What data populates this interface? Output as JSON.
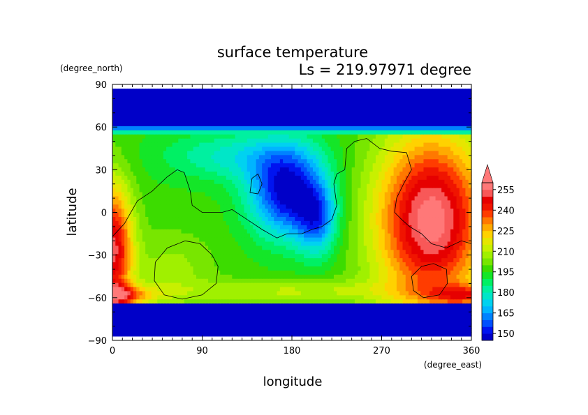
{
  "chart_data": {
    "type": "heatmap",
    "title": "surface temperature",
    "subtitle": "Ls = 219.97971 degree",
    "xlabel": "longitude",
    "ylabel": "latitude",
    "x_unit": "(degree_east)",
    "y_unit": "(degree_north)",
    "xlim": [
      0,
      360
    ],
    "ylim": [
      -90,
      90
    ],
    "x_ticks": [
      0,
      90,
      180,
      270,
      360
    ],
    "y_ticks": [
      90,
      60,
      30,
      0,
      -30,
      -60,
      -90
    ],
    "data_lat_range": [
      -87,
      87
    ],
    "colorbar": {
      "tick_labels": [
        255,
        240,
        225,
        210,
        195,
        180,
        165,
        150
      ],
      "levels": [
        145,
        150,
        155,
        160,
        165,
        170,
        175,
        180,
        185,
        190,
        195,
        200,
        205,
        210,
        215,
        220,
        225,
        230,
        235,
        240,
        245,
        250,
        255,
        260
      ],
      "colors": [
        "#0000c8",
        "#0014f0",
        "#0050ff",
        "#0082ff",
        "#00b4ff",
        "#00d2f0",
        "#00e6c8",
        "#00f0a0",
        "#00f064",
        "#14e628",
        "#3cdc00",
        "#78e600",
        "#a0f000",
        "#c8f000",
        "#e6e600",
        "#ffd200",
        "#ffaa00",
        "#ff7800",
        "#ff3c00",
        "#f01400",
        "#e60000",
        "#f85858",
        "#ff7878"
      ],
      "overflow_color": "#ff7878"
    },
    "field_model": "temperature(lon, lat) with seasonal latitudinal structure; cold polar caps, warm southern subtropics, cold region near 140-210E",
    "continent_outlines": true
  }
}
